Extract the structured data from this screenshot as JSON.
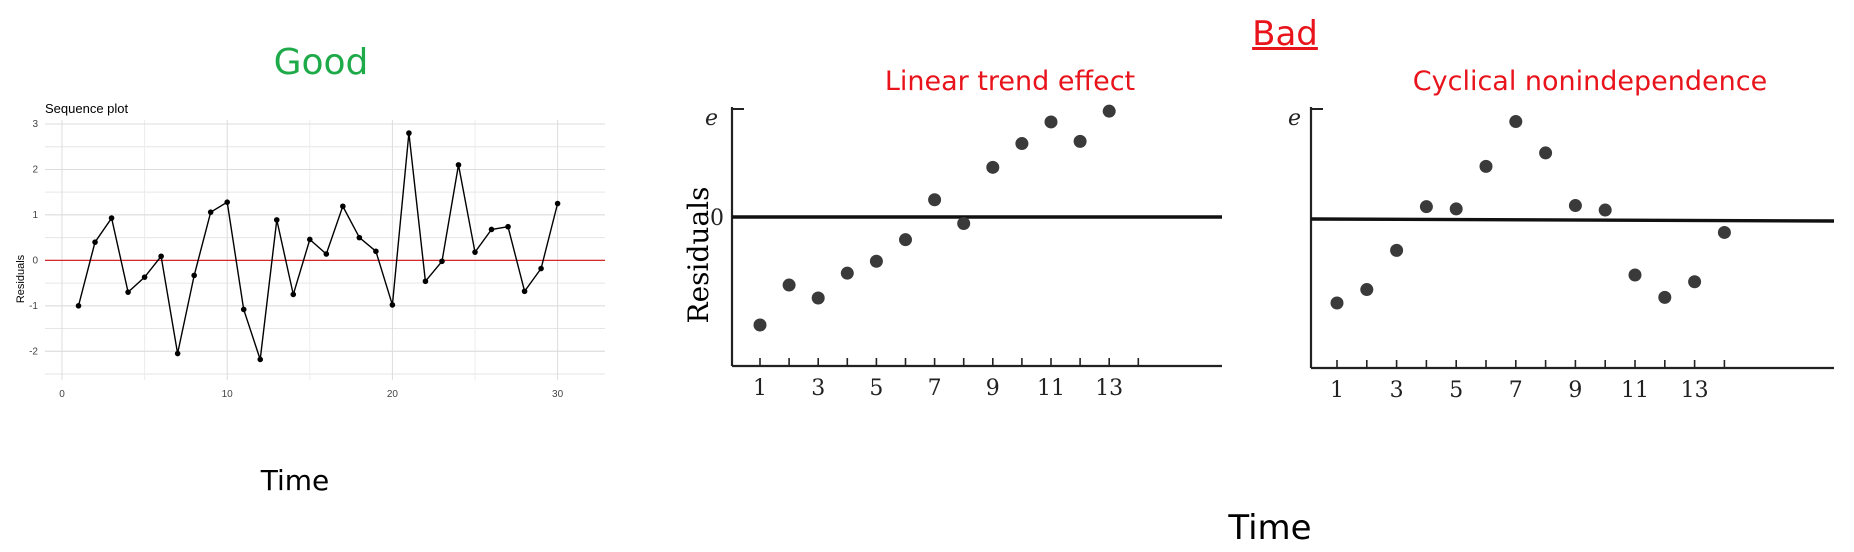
{
  "headings": {
    "good": "Good",
    "bad": "Bad",
    "linear": "Linear trend effect",
    "cyclical": "Cyclical nonindependence",
    "time_left": "Time",
    "time_bottom": "Time"
  },
  "colors": {
    "good": "#1faa4a",
    "bad": "#e8131b",
    "zero_line": "#d62728"
  },
  "chart_data": [
    {
      "type": "line",
      "title": "Sequence plot",
      "xlabel": "",
      "ylabel": "Residuals",
      "xlim": [
        0,
        30
      ],
      "ylim": [
        -2.5,
        3
      ],
      "xticks": [
        0,
        10,
        20,
        30
      ],
      "yticks": [
        -2,
        -1,
        0,
        1,
        2,
        3
      ],
      "grid": true,
      "reference_line": 0,
      "x": [
        1,
        2,
        3,
        4,
        5,
        6,
        7,
        8,
        9,
        10,
        11,
        12,
        13,
        14,
        15,
        16,
        17,
        18,
        19,
        20,
        21,
        22,
        23,
        24,
        25,
        26,
        27,
        28,
        29,
        30
      ],
      "y": [
        -1.0,
        0.4,
        0.93,
        -0.7,
        -0.37,
        0.09,
        -2.05,
        -0.33,
        1.06,
        1.28,
        -1.08,
        -2.18,
        0.89,
        -0.75,
        0.46,
        0.14,
        1.19,
        0.5,
        0.2,
        -0.98,
        2.8,
        -0.46,
        -0.02,
        2.1,
        0.18,
        0.68,
        0.74,
        -0.68,
        -0.18,
        1.25
      ]
    },
    {
      "type": "scatter",
      "title": "Linear trend effect",
      "xlabel": "",
      "ylabel": "Residuals",
      "ylabel_axis_symbol": "e",
      "xticks": [
        1,
        3,
        5,
        7,
        9,
        11,
        13
      ],
      "yticks": [
        0
      ],
      "x": [
        1,
        2,
        3,
        4,
        5,
        6,
        7,
        8,
        9,
        10,
        11,
        12,
        13
      ],
      "y": [
        -1.0,
        -0.63,
        -0.75,
        -0.52,
        -0.41,
        -0.21,
        0.16,
        -0.06,
        0.46,
        0.68,
        0.88,
        0.7,
        0.98
      ]
    },
    {
      "type": "scatter",
      "title": "Cyclical nonindependence",
      "xlabel": "Time",
      "ylabel": "",
      "ylabel_axis_symbol": "e",
      "xticks": [
        1,
        3,
        5,
        7,
        9,
        11,
        13
      ],
      "x": [
        1,
        2,
        3,
        4,
        5,
        6,
        7,
        8,
        9,
        10,
        11,
        12,
        13,
        14
      ],
      "y": [
        -0.75,
        -0.63,
        -0.28,
        0.11,
        0.09,
        0.47,
        0.87,
        0.59,
        0.12,
        0.08,
        -0.5,
        -0.7,
        -0.56,
        -0.12
      ]
    }
  ]
}
